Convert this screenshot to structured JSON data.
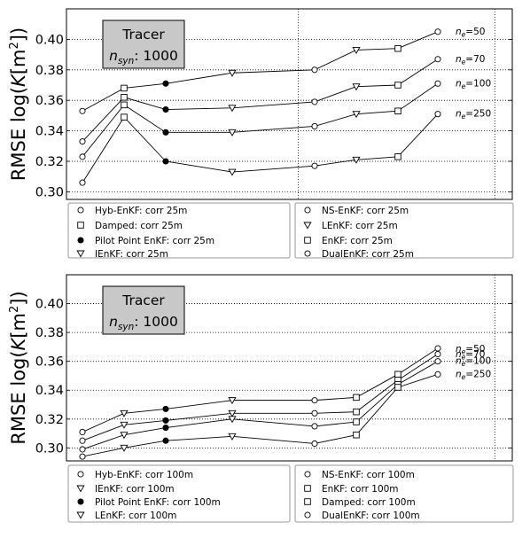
{
  "chart_data": [
    {
      "type": "line",
      "ylabel_main": "RMSE  log(",
      "ylabel_K": "K",
      "ylabel_unit": "[m",
      "ylabel_sup": "2",
      "ylabel_close": "])",
      "yticks": [
        "0.30",
        "0.32",
        "0.34",
        "0.36",
        "0.38",
        "0.40"
      ],
      "ylim": [
        0.295,
        0.42
      ],
      "x_index_range": [
        -0.8,
        9.4
      ],
      "vlines": [
        4.5,
        9.0
      ],
      "grid": "horizontal-dotted",
      "box": {
        "line1": "Tracer",
        "n": "n",
        "sub": "syn",
        "rest": ": 1000"
      },
      "ne_labels": [
        {
          "pre": "n",
          "sub": "e",
          "post": "=50",
          "y": 0.405
        },
        {
          "pre": "n",
          "sub": "e",
          "post": "=70",
          "y": 0.387
        },
        {
          "pre": "n",
          "sub": "e",
          "post": "=100",
          "y": 0.371
        },
        {
          "pre": "n",
          "sub": "e",
          "post": "=250",
          "y": 0.351
        }
      ],
      "series": [
        {
          "marker": "o",
          "values": [
            0.353,
            0.368,
            0.371,
            0.378,
            0.38,
            0.393,
            0.394,
            0.405
          ]
        },
        {
          "marker": "s",
          "values": [
            0.333,
            0.362,
            0.354,
            0.355,
            0.359,
            0.369,
            0.37,
            0.387
          ]
        },
        {
          "marker": "v",
          "values": [
            0.323,
            0.357,
            0.339,
            0.339,
            0.343,
            0.351,
            0.353,
            0.371
          ]
        },
        {
          "marker": "o",
          "values": [
            0.306,
            0.349,
            0.32,
            0.313,
            0.317,
            0.321,
            0.323,
            0.351
          ]
        }
      ],
      "points": [
        {
          "i": 0,
          "y": 0.353,
          "m": "o"
        },
        {
          "i": 0,
          "y": 0.333,
          "m": "o"
        },
        {
          "i": 0,
          "y": 0.323,
          "m": "o"
        },
        {
          "i": 0,
          "y": 0.306,
          "m": "o"
        },
        {
          "i": 1,
          "y": 0.368,
          "m": "s"
        },
        {
          "i": 1,
          "y": 0.362,
          "m": "s"
        },
        {
          "i": 1,
          "y": 0.357,
          "m": "s"
        },
        {
          "i": 1,
          "y": 0.349,
          "m": "s"
        },
        {
          "i": 2,
          "y": 0.371,
          "m": "f"
        },
        {
          "i": 2,
          "y": 0.354,
          "m": "f"
        },
        {
          "i": 2,
          "y": 0.339,
          "m": "f"
        },
        {
          "i": 2,
          "y": 0.32,
          "m": "f"
        },
        {
          "i": 3,
          "y": 0.378,
          "m": "v"
        },
        {
          "i": 3,
          "y": 0.355,
          "m": "v"
        },
        {
          "i": 3,
          "y": 0.339,
          "m": "v"
        },
        {
          "i": 3,
          "y": 0.313,
          "m": "v"
        },
        {
          "i": 5,
          "y": 0.38,
          "m": "o"
        },
        {
          "i": 5,
          "y": 0.359,
          "m": "o"
        },
        {
          "i": 5,
          "y": 0.343,
          "m": "o"
        },
        {
          "i": 5,
          "y": 0.317,
          "m": "o"
        },
        {
          "i": 6,
          "y": 0.393,
          "m": "v"
        },
        {
          "i": 6,
          "y": 0.369,
          "m": "v"
        },
        {
          "i": 6,
          "y": 0.351,
          "m": "v"
        },
        {
          "i": 6,
          "y": 0.321,
          "m": "v"
        },
        {
          "i": 7,
          "y": 0.394,
          "m": "s"
        },
        {
          "i": 7,
          "y": 0.37,
          "m": "s"
        },
        {
          "i": 7,
          "y": 0.353,
          "m": "s"
        },
        {
          "i": 7,
          "y": 0.323,
          "m": "s"
        },
        {
          "i": 8,
          "y": 0.405,
          "m": "o"
        },
        {
          "i": 8,
          "y": 0.387,
          "m": "o"
        },
        {
          "i": 8,
          "y": 0.371,
          "m": "o"
        },
        {
          "i": 8,
          "y": 0.351,
          "m": "o"
        }
      ],
      "legend": [
        [
          {
            "marker": "o",
            "label": "Hyb-EnKF: corr  25m"
          },
          {
            "marker": "s",
            "label": "Damped: corr  25m"
          },
          {
            "marker": "f",
            "label": "Pilot Point EnKF: corr  25m"
          },
          {
            "marker": "v",
            "label": "IEnKF: corr  25m"
          }
        ],
        [
          {
            "marker": "o",
            "label": "NS-EnKF: corr  25m"
          },
          {
            "marker": "v",
            "label": "LEnKF: corr  25m"
          },
          {
            "marker": "s",
            "label": "EnKF: corr  25m"
          },
          {
            "marker": "o",
            "label": "DualEnKF: corr  25m"
          }
        ]
      ]
    },
    {
      "type": "line",
      "ylabel_main": "RMSE  log(",
      "ylabel_K": "K",
      "ylabel_unit": "[m",
      "ylabel_sup": "2",
      "ylabel_close": "])",
      "yticks": [
        "0.30",
        "0.32",
        "0.34",
        "0.36",
        "0.38",
        "0.40"
      ],
      "ylim": [
        0.291,
        0.42
      ],
      "x_index_range": [
        -0.8,
        9.4
      ],
      "vlines": [
        9.0
      ],
      "grid": "horizontal-dotted",
      "box": {
        "line1": "Tracer",
        "n": "n",
        "sub": "syn",
        "rest": ": 1000"
      },
      "ne_labels": [
        {
          "pre": "n",
          "sub": "e",
          "post": "=50",
          "y": 0.3685
        },
        {
          "pre": "n",
          "sub": "e",
          "post": "=70",
          "y": 0.3648
        },
        {
          "pre": "n",
          "sub": "e",
          "post": "=100",
          "y": 0.36
        },
        {
          "pre": "n",
          "sub": "e",
          "post": "=250",
          "y": 0.351
        }
      ],
      "series": [
        {
          "marker": "o",
          "values": [
            0.311,
            0.324,
            0.327,
            0.333,
            0.333,
            0.335,
            0.351,
            0.369
          ]
        },
        {
          "marker": "v",
          "values": [
            0.305,
            0.316,
            0.319,
            0.324,
            0.324,
            0.325,
            0.347,
            0.365
          ]
        },
        {
          "marker": "f",
          "values": [
            0.299,
            0.309,
            0.314,
            0.32,
            0.315,
            0.318,
            0.344,
            0.36
          ]
        },
        {
          "marker": "v",
          "values": [
            0.294,
            0.3,
            0.305,
            0.308,
            0.303,
            0.309,
            0.342,
            0.351
          ]
        }
      ],
      "points": [
        {
          "i": 0,
          "y": 0.311,
          "m": "o"
        },
        {
          "i": 0,
          "y": 0.305,
          "m": "o"
        },
        {
          "i": 0,
          "y": 0.299,
          "m": "o"
        },
        {
          "i": 0,
          "y": 0.294,
          "m": "o"
        },
        {
          "i": 1,
          "y": 0.324,
          "m": "v"
        },
        {
          "i": 1,
          "y": 0.316,
          "m": "v"
        },
        {
          "i": 1,
          "y": 0.309,
          "m": "v"
        },
        {
          "i": 1,
          "y": 0.3,
          "m": "v"
        },
        {
          "i": 2,
          "y": 0.327,
          "m": "f"
        },
        {
          "i": 2,
          "y": 0.319,
          "m": "f"
        },
        {
          "i": 2,
          "y": 0.314,
          "m": "f"
        },
        {
          "i": 2,
          "y": 0.305,
          "m": "f"
        },
        {
          "i": 3,
          "y": 0.333,
          "m": "v"
        },
        {
          "i": 3,
          "y": 0.324,
          "m": "v"
        },
        {
          "i": 3,
          "y": 0.32,
          "m": "v"
        },
        {
          "i": 3,
          "y": 0.308,
          "m": "v"
        },
        {
          "i": 5,
          "y": 0.333,
          "m": "o"
        },
        {
          "i": 5,
          "y": 0.324,
          "m": "o"
        },
        {
          "i": 5,
          "y": 0.315,
          "m": "o"
        },
        {
          "i": 5,
          "y": 0.303,
          "m": "o"
        },
        {
          "i": 6,
          "y": 0.335,
          "m": "s"
        },
        {
          "i": 6,
          "y": 0.325,
          "m": "s"
        },
        {
          "i": 6,
          "y": 0.318,
          "m": "s"
        },
        {
          "i": 6,
          "y": 0.309,
          "m": "s"
        },
        {
          "i": 7,
          "y": 0.351,
          "m": "s"
        },
        {
          "i": 7,
          "y": 0.347,
          "m": "s"
        },
        {
          "i": 7,
          "y": 0.344,
          "m": "s"
        },
        {
          "i": 7,
          "y": 0.342,
          "m": "s"
        },
        {
          "i": 8,
          "y": 0.369,
          "m": "o"
        },
        {
          "i": 8,
          "y": 0.365,
          "m": "o"
        },
        {
          "i": 8,
          "y": 0.36,
          "m": "o"
        },
        {
          "i": 8,
          "y": 0.351,
          "m": "o"
        }
      ],
      "legend": [
        [
          {
            "marker": "o",
            "label": "Hyb-EnKF: corr 100m"
          },
          {
            "marker": "v",
            "label": "IEnKF: corr 100m"
          },
          {
            "marker": "f",
            "label": "Pilot Point EnKF: corr 100m"
          },
          {
            "marker": "v",
            "label": "LEnKF: corr 100m"
          }
        ],
        [
          {
            "marker": "o",
            "label": "NS-EnKF: corr 100m"
          },
          {
            "marker": "s",
            "label": "EnKF: corr 100m"
          },
          {
            "marker": "s",
            "label": "Damped: corr 100m"
          },
          {
            "marker": "o",
            "label": "DualEnKF: corr 100m"
          }
        ]
      ]
    }
  ]
}
